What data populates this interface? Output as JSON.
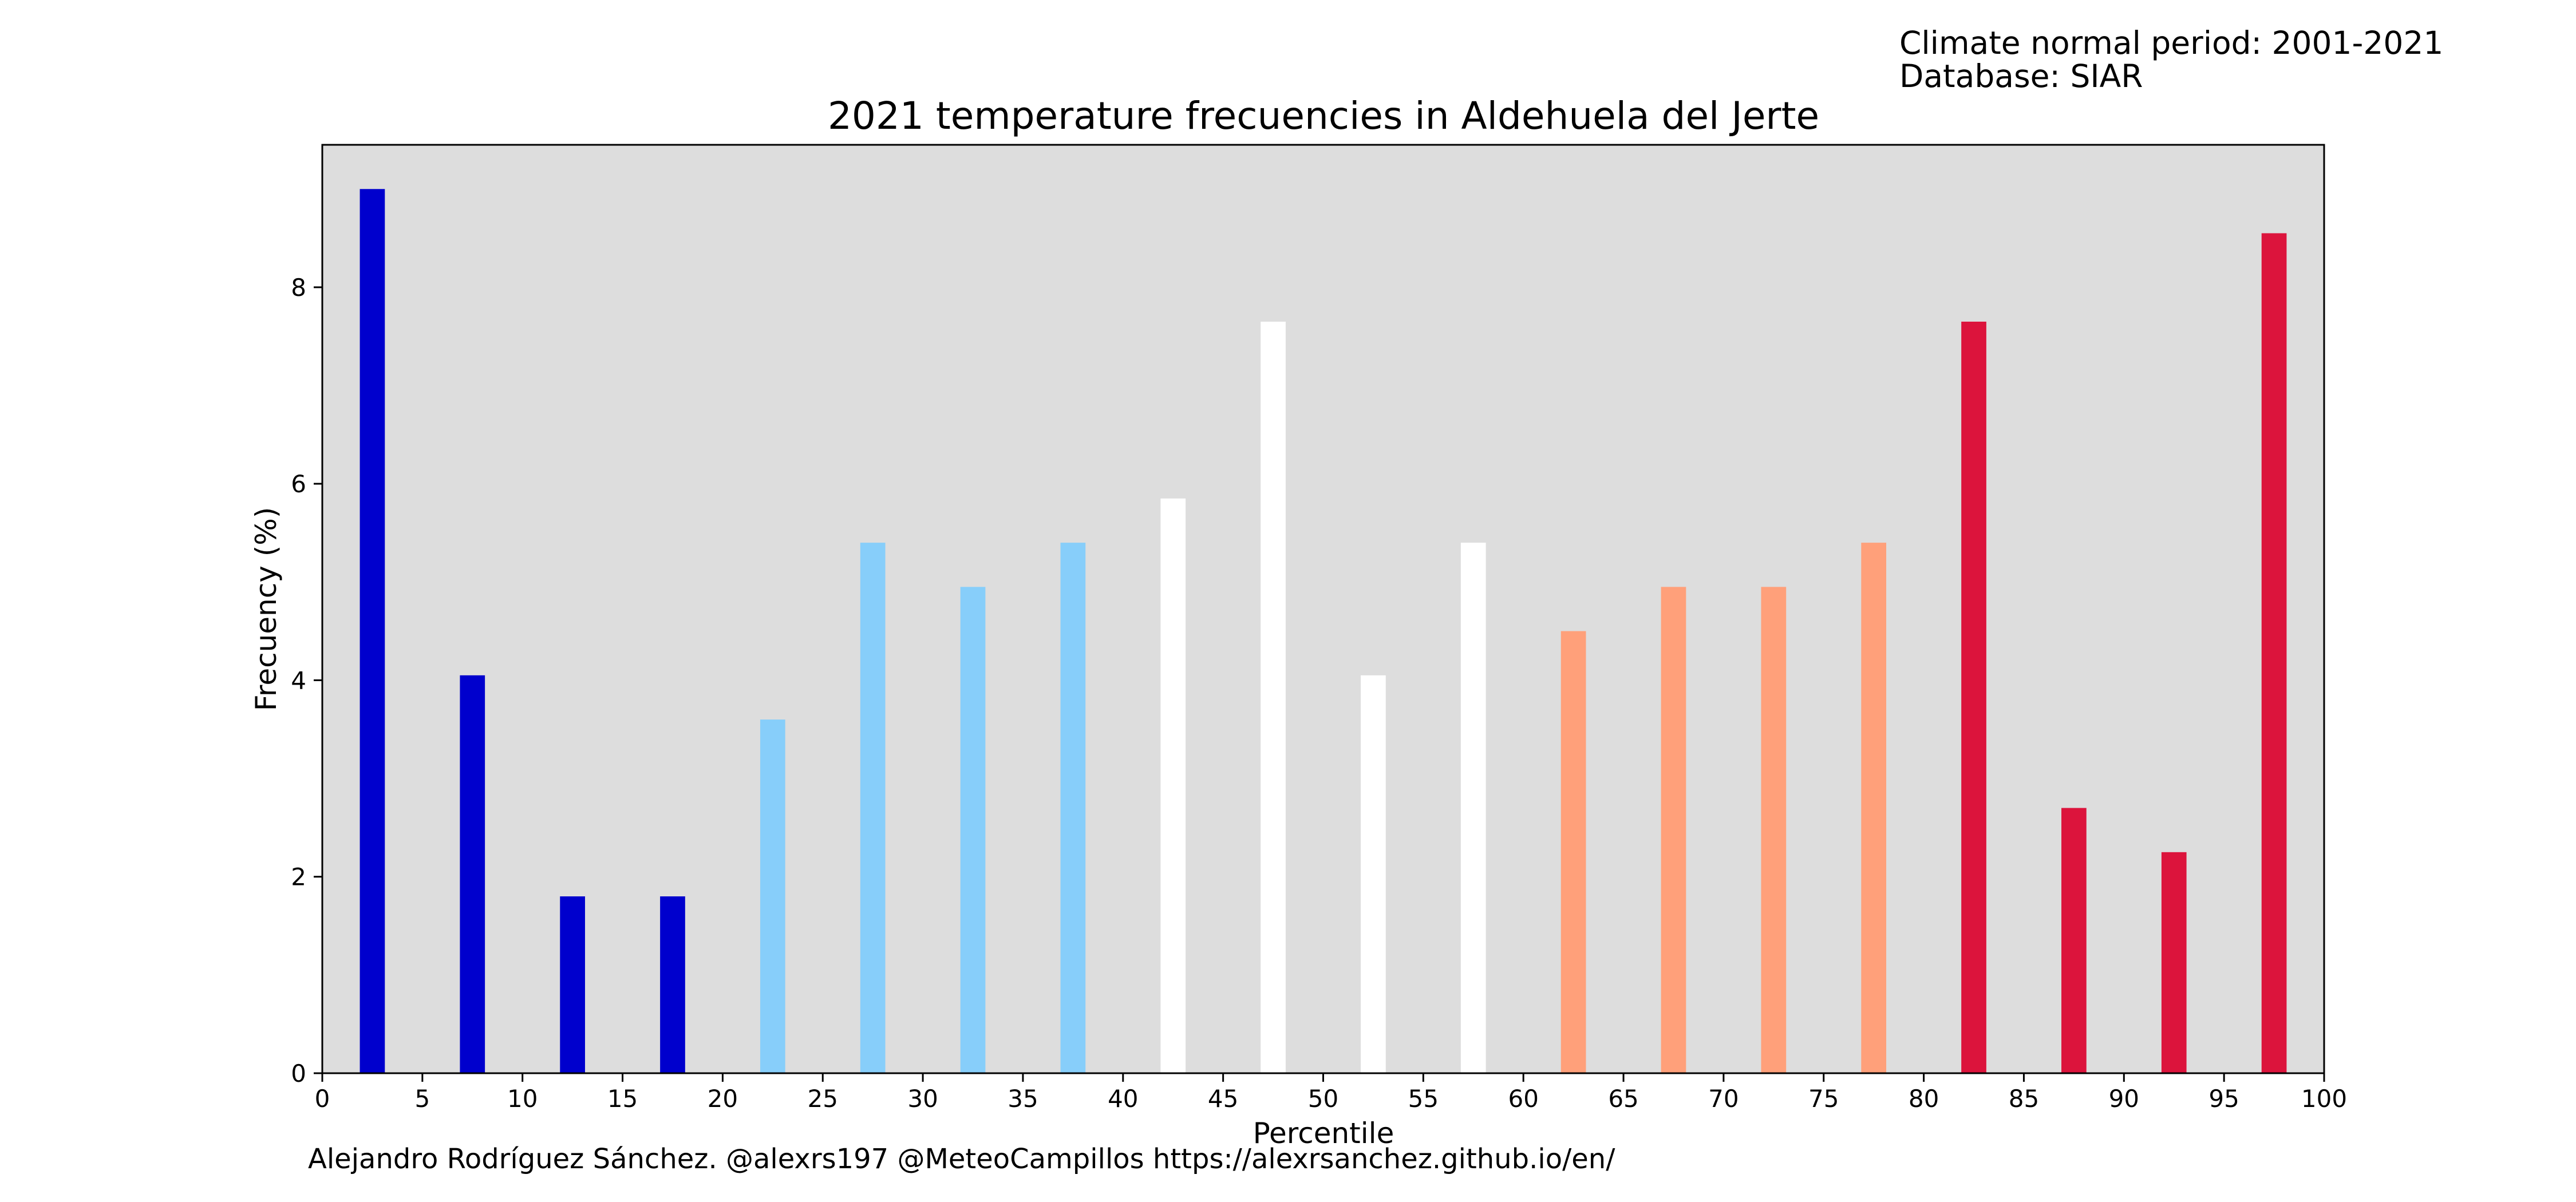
{
  "header": {
    "climate_period": "Climate normal period: 2001-2021",
    "database": "Database: SIAR"
  },
  "footer": {
    "credits": "Alejandro Rodríguez Sánchez. @alexrs197 @MeteoCampillos   https://alexrsanchez.github.io/en/"
  },
  "colors": {
    "plot_background": "#dddddd",
    "very_cold": "#0000cd",
    "cold": "#87cefa",
    "normal": "#ffffff",
    "warm": "#ffa07a",
    "very_warm": "#dc143c"
  },
  "chart_data": {
    "type": "bar",
    "title": "2021 temperature frecuencies in Aldehuela del Jerte",
    "xlabel": "Percentile",
    "ylabel": "Frecuency (%)",
    "xlim": [
      0,
      100
    ],
    "ylim": [
      0,
      9.45
    ],
    "grid": false,
    "x": [
      2.5,
      7.5,
      12.5,
      17.5,
      22.5,
      27.5,
      32.5,
      37.5,
      42.5,
      47.5,
      52.5,
      57.5,
      62.5,
      67.5,
      72.5,
      77.5,
      82.5,
      87.5,
      92.5,
      97.5
    ],
    "values": [
      9.0,
      4.05,
      1.8,
      1.8,
      3.6,
      5.4,
      4.95,
      5.4,
      5.85,
      7.65,
      4.05,
      5.4,
      4.5,
      4.95,
      4.95,
      5.4,
      7.65,
      2.7,
      2.25,
      8.55
    ],
    "bar_colors": [
      "#0000cd",
      "#0000cd",
      "#0000cd",
      "#0000cd",
      "#87cefa",
      "#87cefa",
      "#87cefa",
      "#87cefa",
      "#ffffff",
      "#ffffff",
      "#ffffff",
      "#ffffff",
      "#ffa07a",
      "#ffa07a",
      "#ffa07a",
      "#ffa07a",
      "#dc143c",
      "#dc143c",
      "#dc143c",
      "#dc143c"
    ],
    "xticks": [
      0,
      5,
      10,
      15,
      20,
      25,
      30,
      35,
      40,
      45,
      50,
      55,
      60,
      65,
      70,
      75,
      80,
      85,
      90,
      95,
      100
    ],
    "yticks": [
      0,
      2,
      4,
      6,
      8
    ]
  }
}
